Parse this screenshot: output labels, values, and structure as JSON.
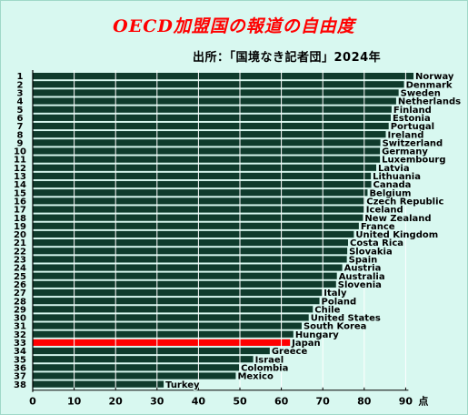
{
  "title": "OECD加盟国の報道の自由度",
  "subtitle": "出所：「国境なき記者団」2024年",
  "chart_data": {
    "type": "bar",
    "orientation": "horizontal",
    "title": "OECD加盟国の報道の自由度",
    "subtitle": "出所：「国境なき記者団」2024年",
    "xlabel": "点",
    "xlim": [
      0,
      90
    ],
    "xticks": [
      0,
      10,
      20,
      30,
      40,
      50,
      60,
      70,
      80,
      90
    ],
    "grid": true,
    "bar_color": "#0f3b2c",
    "highlight_color": "#ff0000",
    "gridline_color": "#ffffff",
    "highlight": "Japan",
    "ranks": [
      1,
      2,
      3,
      4,
      5,
      6,
      7,
      8,
      9,
      10,
      11,
      12,
      13,
      14,
      15,
      16,
      17,
      18,
      19,
      20,
      21,
      22,
      23,
      24,
      25,
      26,
      27,
      28,
      29,
      30,
      31,
      32,
      33,
      34,
      35,
      36,
      37,
      38
    ],
    "categories": [
      "Norway",
      "Denmark",
      "Sweden",
      "Netherlands",
      "Finland",
      "Estonia",
      "Portugal",
      "Ireland",
      "Switzerland",
      "Germany",
      "Luxembourg",
      "Latvia",
      "Lithuania",
      "Canada",
      "Belgium",
      "Czech Republic",
      "Iceland",
      "New Zealand",
      "France",
      "United Kingdom",
      "Costa Rica",
      "Slovakia",
      "Spain",
      "Austria",
      "Australia",
      "Slovenia",
      "Italy",
      "Poland",
      "Chile",
      "United States",
      "South Korea",
      "Hungary",
      "Japan",
      "Greece",
      "Israel",
      "Colombia",
      "Mexico",
      "Turkey"
    ],
    "values": [
      91.9,
      89.6,
      88.3,
      87.7,
      86.6,
      86.4,
      85.9,
      85.2,
      83.9,
      83.8,
      83.8,
      82.9,
      81.6,
      81.7,
      80.8,
      80.1,
      80.0,
      79.7,
      78.7,
      77.5,
      76.1,
      75.9,
      75.8,
      74.7,
      73.4,
      73.2,
      69.8,
      69.2,
      67.6,
      66.6,
      64.9,
      62.9,
      62.1,
      57.2,
      53.2,
      49.8,
      49.0,
      31.6
    ]
  }
}
